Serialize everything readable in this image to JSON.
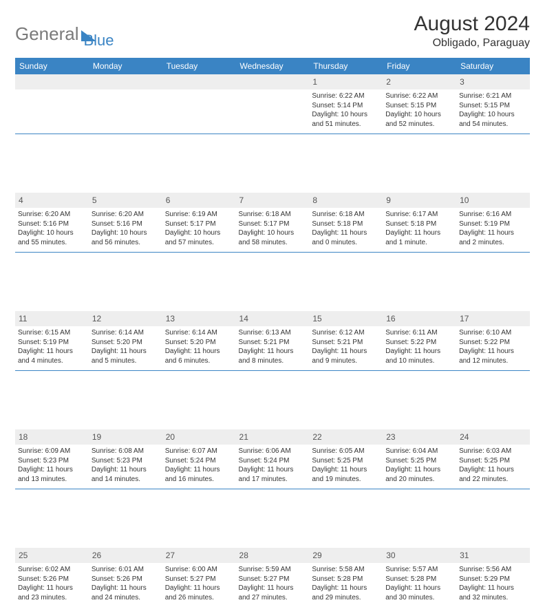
{
  "logo": {
    "part1": "General",
    "part2": "Blue"
  },
  "title": "August 2024",
  "location": "Obligado, Paraguay",
  "colors": {
    "header_bg": "#3a84c4",
    "header_text": "#ffffff",
    "daynum_bg": "#eeeeee",
    "rule": "#3a84c4",
    "body_text": "#333333"
  },
  "daynames": [
    "Sunday",
    "Monday",
    "Tuesday",
    "Wednesday",
    "Thursday",
    "Friday",
    "Saturday"
  ],
  "weeks": [
    [
      {
        "n": "",
        "sr": "",
        "ss": "",
        "dl": ""
      },
      {
        "n": "",
        "sr": "",
        "ss": "",
        "dl": ""
      },
      {
        "n": "",
        "sr": "",
        "ss": "",
        "dl": ""
      },
      {
        "n": "",
        "sr": "",
        "ss": "",
        "dl": ""
      },
      {
        "n": "1",
        "sr": "Sunrise: 6:22 AM",
        "ss": "Sunset: 5:14 PM",
        "dl": "Daylight: 10 hours and 51 minutes."
      },
      {
        "n": "2",
        "sr": "Sunrise: 6:22 AM",
        "ss": "Sunset: 5:15 PM",
        "dl": "Daylight: 10 hours and 52 minutes."
      },
      {
        "n": "3",
        "sr": "Sunrise: 6:21 AM",
        "ss": "Sunset: 5:15 PM",
        "dl": "Daylight: 10 hours and 54 minutes."
      }
    ],
    [
      {
        "n": "4",
        "sr": "Sunrise: 6:20 AM",
        "ss": "Sunset: 5:16 PM",
        "dl": "Daylight: 10 hours and 55 minutes."
      },
      {
        "n": "5",
        "sr": "Sunrise: 6:20 AM",
        "ss": "Sunset: 5:16 PM",
        "dl": "Daylight: 10 hours and 56 minutes."
      },
      {
        "n": "6",
        "sr": "Sunrise: 6:19 AM",
        "ss": "Sunset: 5:17 PM",
        "dl": "Daylight: 10 hours and 57 minutes."
      },
      {
        "n": "7",
        "sr": "Sunrise: 6:18 AM",
        "ss": "Sunset: 5:17 PM",
        "dl": "Daylight: 10 hours and 58 minutes."
      },
      {
        "n": "8",
        "sr": "Sunrise: 6:18 AM",
        "ss": "Sunset: 5:18 PM",
        "dl": "Daylight: 11 hours and 0 minutes."
      },
      {
        "n": "9",
        "sr": "Sunrise: 6:17 AM",
        "ss": "Sunset: 5:18 PM",
        "dl": "Daylight: 11 hours and 1 minute."
      },
      {
        "n": "10",
        "sr": "Sunrise: 6:16 AM",
        "ss": "Sunset: 5:19 PM",
        "dl": "Daylight: 11 hours and 2 minutes."
      }
    ],
    [
      {
        "n": "11",
        "sr": "Sunrise: 6:15 AM",
        "ss": "Sunset: 5:19 PM",
        "dl": "Daylight: 11 hours and 4 minutes."
      },
      {
        "n": "12",
        "sr": "Sunrise: 6:14 AM",
        "ss": "Sunset: 5:20 PM",
        "dl": "Daylight: 11 hours and 5 minutes."
      },
      {
        "n": "13",
        "sr": "Sunrise: 6:14 AM",
        "ss": "Sunset: 5:20 PM",
        "dl": "Daylight: 11 hours and 6 minutes."
      },
      {
        "n": "14",
        "sr": "Sunrise: 6:13 AM",
        "ss": "Sunset: 5:21 PM",
        "dl": "Daylight: 11 hours and 8 minutes."
      },
      {
        "n": "15",
        "sr": "Sunrise: 6:12 AM",
        "ss": "Sunset: 5:21 PM",
        "dl": "Daylight: 11 hours and 9 minutes."
      },
      {
        "n": "16",
        "sr": "Sunrise: 6:11 AM",
        "ss": "Sunset: 5:22 PM",
        "dl": "Daylight: 11 hours and 10 minutes."
      },
      {
        "n": "17",
        "sr": "Sunrise: 6:10 AM",
        "ss": "Sunset: 5:22 PM",
        "dl": "Daylight: 11 hours and 12 minutes."
      }
    ],
    [
      {
        "n": "18",
        "sr": "Sunrise: 6:09 AM",
        "ss": "Sunset: 5:23 PM",
        "dl": "Daylight: 11 hours and 13 minutes."
      },
      {
        "n": "19",
        "sr": "Sunrise: 6:08 AM",
        "ss": "Sunset: 5:23 PM",
        "dl": "Daylight: 11 hours and 14 minutes."
      },
      {
        "n": "20",
        "sr": "Sunrise: 6:07 AM",
        "ss": "Sunset: 5:24 PM",
        "dl": "Daylight: 11 hours and 16 minutes."
      },
      {
        "n": "21",
        "sr": "Sunrise: 6:06 AM",
        "ss": "Sunset: 5:24 PM",
        "dl": "Daylight: 11 hours and 17 minutes."
      },
      {
        "n": "22",
        "sr": "Sunrise: 6:05 AM",
        "ss": "Sunset: 5:25 PM",
        "dl": "Daylight: 11 hours and 19 minutes."
      },
      {
        "n": "23",
        "sr": "Sunrise: 6:04 AM",
        "ss": "Sunset: 5:25 PM",
        "dl": "Daylight: 11 hours and 20 minutes."
      },
      {
        "n": "24",
        "sr": "Sunrise: 6:03 AM",
        "ss": "Sunset: 5:25 PM",
        "dl": "Daylight: 11 hours and 22 minutes."
      }
    ],
    [
      {
        "n": "25",
        "sr": "Sunrise: 6:02 AM",
        "ss": "Sunset: 5:26 PM",
        "dl": "Daylight: 11 hours and 23 minutes."
      },
      {
        "n": "26",
        "sr": "Sunrise: 6:01 AM",
        "ss": "Sunset: 5:26 PM",
        "dl": "Daylight: 11 hours and 24 minutes."
      },
      {
        "n": "27",
        "sr": "Sunrise: 6:00 AM",
        "ss": "Sunset: 5:27 PM",
        "dl": "Daylight: 11 hours and 26 minutes."
      },
      {
        "n": "28",
        "sr": "Sunrise: 5:59 AM",
        "ss": "Sunset: 5:27 PM",
        "dl": "Daylight: 11 hours and 27 minutes."
      },
      {
        "n": "29",
        "sr": "Sunrise: 5:58 AM",
        "ss": "Sunset: 5:28 PM",
        "dl": "Daylight: 11 hours and 29 minutes."
      },
      {
        "n": "30",
        "sr": "Sunrise: 5:57 AM",
        "ss": "Sunset: 5:28 PM",
        "dl": "Daylight: 11 hours and 30 minutes."
      },
      {
        "n": "31",
        "sr": "Sunrise: 5:56 AM",
        "ss": "Sunset: 5:29 PM",
        "dl": "Daylight: 11 hours and 32 minutes."
      }
    ]
  ]
}
